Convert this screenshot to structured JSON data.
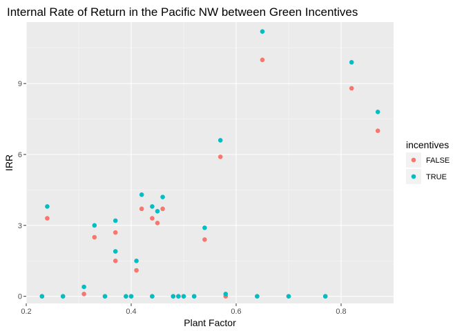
{
  "chart_data": {
    "type": "scatter",
    "title": "Internal Rate of Return in the Pacific NW between Green Incentives",
    "xlabel": "Plant Factor",
    "ylabel": "IRR",
    "xlim": [
      0.2,
      0.9
    ],
    "ylim": [
      -0.3,
      11.6
    ],
    "x_ticks": [
      0.2,
      0.4,
      0.6,
      0.8
    ],
    "x_tick_labels": [
      "0.2",
      "0.4",
      "0.6",
      "0.8"
    ],
    "y_ticks": [
      0,
      3,
      6,
      9
    ],
    "y_tick_labels": [
      "0",
      "3",
      "6",
      "9"
    ],
    "grid": true,
    "legend": {
      "title": "incentives",
      "placement": "right"
    },
    "series": [
      {
        "name": "FALSE",
        "color": "#F8766D",
        "points": [
          [
            0.23,
            0
          ],
          [
            0.24,
            3.3
          ],
          [
            0.27,
            0
          ],
          [
            0.31,
            0.1
          ],
          [
            0.33,
            2.5
          ],
          [
            0.35,
            0
          ],
          [
            0.37,
            2.7
          ],
          [
            0.37,
            1.5
          ],
          [
            0.39,
            0
          ],
          [
            0.4,
            0
          ],
          [
            0.41,
            1.1
          ],
          [
            0.42,
            3.7
          ],
          [
            0.44,
            3.3
          ],
          [
            0.44,
            0
          ],
          [
            0.45,
            3.1
          ],
          [
            0.46,
            3.7
          ],
          [
            0.48,
            0
          ],
          [
            0.49,
            0
          ],
          [
            0.5,
            0
          ],
          [
            0.52,
            0
          ],
          [
            0.54,
            2.4
          ],
          [
            0.57,
            5.9
          ],
          [
            0.58,
            0
          ],
          [
            0.64,
            0
          ],
          [
            0.65,
            10.0
          ],
          [
            0.7,
            0
          ],
          [
            0.77,
            0
          ],
          [
            0.82,
            8.8
          ],
          [
            0.87,
            7.0
          ]
        ]
      },
      {
        "name": "TRUE",
        "color": "#00BFC4",
        "points": [
          [
            0.23,
            0
          ],
          [
            0.24,
            3.8
          ],
          [
            0.27,
            0
          ],
          [
            0.31,
            0.4
          ],
          [
            0.33,
            3.0
          ],
          [
            0.35,
            0
          ],
          [
            0.37,
            3.2
          ],
          [
            0.37,
            1.9
          ],
          [
            0.39,
            0
          ],
          [
            0.4,
            0
          ],
          [
            0.41,
            1.5
          ],
          [
            0.42,
            4.3
          ],
          [
            0.44,
            3.8
          ],
          [
            0.44,
            0
          ],
          [
            0.45,
            3.6
          ],
          [
            0.46,
            4.2
          ],
          [
            0.48,
            0
          ],
          [
            0.49,
            0
          ],
          [
            0.5,
            0
          ],
          [
            0.52,
            0
          ],
          [
            0.54,
            2.9
          ],
          [
            0.57,
            6.6
          ],
          [
            0.58,
            0.1
          ],
          [
            0.64,
            0
          ],
          [
            0.65,
            11.2
          ],
          [
            0.7,
            0
          ],
          [
            0.77,
            0
          ],
          [
            0.82,
            9.9
          ],
          [
            0.87,
            7.8
          ]
        ]
      }
    ]
  }
}
